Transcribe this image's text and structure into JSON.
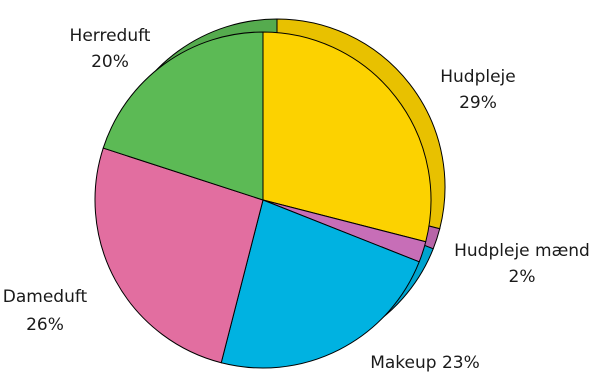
{
  "chart_data": {
    "type": "pie",
    "title": "",
    "slices": [
      {
        "name": "Hudpleje",
        "value": 29,
        "percent_label": "29%",
        "color": "#FCD200"
      },
      {
        "name": "Hudpleje mænd",
        "value": 2,
        "percent_label": "2%",
        "color": "#C76EB7"
      },
      {
        "name": "Makeup",
        "value": 23,
        "percent_label": "23%",
        "color": "#00B2E1"
      },
      {
        "name": "Dameduft",
        "value": 26,
        "percent_label": "26%",
        "color": "#E26EA0"
      },
      {
        "name": "Herreduft",
        "value": 20,
        "percent_label": "20%",
        "color": "#5CBA55"
      }
    ],
    "legend": "none",
    "style": "3d-tilted-pie"
  },
  "labels": {
    "hudpleje": {
      "name": "Hudpleje",
      "pct": "29%"
    },
    "hudpleje_maend": {
      "name": "Hudpleje mænd",
      "pct": "2%"
    },
    "makeup": {
      "full": "Makeup 23%"
    },
    "dameduft": {
      "name": "Dameduft",
      "pct": "26%"
    },
    "herreduft": {
      "name": "Herreduft",
      "pct": "20%"
    }
  }
}
